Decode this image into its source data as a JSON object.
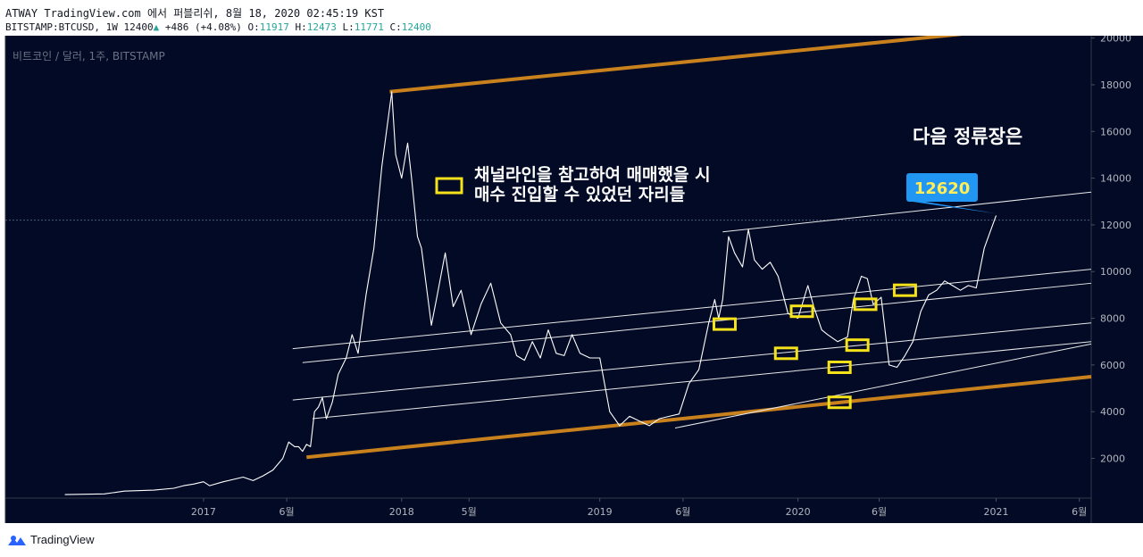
{
  "header": {
    "line1": "ATWAY TradingView.com 에서 퍼블리쉬, 8월 18, 2020 02:45:19 KST",
    "symbol": "BITSTAMP:BTCUSD, 1W 12400",
    "change": "+486 (+4.08%)",
    "o_label": "O:",
    "o": "11917",
    "h_label": "H:",
    "h": "12473",
    "l_label": "L:",
    "l": "11771",
    "c_label": "C:",
    "c": "12400"
  },
  "watermark": "비트코인 / 달러, 1주, BITSTAMP",
  "annotations": {
    "legend_line1": "채널라인을 참고하여 매매했을 시",
    "legend_line2": "매수 진입할 수 있었던 자리들",
    "title_right": "다음 정류장은",
    "price_callout": "12620"
  },
  "footer": {
    "brand": "TradingView"
  },
  "colors": {
    "background": "#020a25",
    "price_line": "#ffffff",
    "channel_orange": "#c8811c",
    "highlight_box": "#f5e21a",
    "callout_bg": "#2196f3",
    "callout_text": "#ffee58",
    "axis_text": "#b2b5be"
  },
  "chart_data": {
    "type": "line",
    "series": [
      {
        "values": [
          [
            2016.3,
            450
          ],
          [
            2016.5,
            480
          ],
          [
            2016.6,
            600
          ],
          [
            2016.75,
            640
          ],
          [
            2016.85,
            720
          ],
          [
            2016.9,
            830
          ],
          [
            2016.95,
            900
          ],
          [
            2017.0,
            1000
          ],
          [
            2017.03,
            830
          ],
          [
            2017.1,
            1000
          ],
          [
            2017.2,
            1200
          ],
          [
            2017.25,
            1050
          ],
          [
            2017.3,
            1250
          ],
          [
            2017.35,
            1500
          ],
          [
            2017.4,
            2000
          ],
          [
            2017.43,
            2700
          ],
          [
            2017.46,
            2500
          ],
          [
            2017.48,
            2500
          ],
          [
            2017.5,
            2300
          ],
          [
            2017.52,
            2600
          ],
          [
            2017.54,
            2500
          ],
          [
            2017.56,
            4000
          ],
          [
            2017.58,
            4200
          ],
          [
            2017.6,
            4600
          ],
          [
            2017.62,
            3700
          ],
          [
            2017.65,
            4400
          ],
          [
            2017.68,
            5600
          ],
          [
            2017.72,
            6300
          ],
          [
            2017.75,
            7300
          ],
          [
            2017.78,
            6500
          ],
          [
            2017.82,
            9000
          ],
          [
            2017.86,
            11000
          ],
          [
            2017.9,
            14500
          ],
          [
            2017.95,
            17700
          ],
          [
            2017.97,
            15000
          ],
          [
            2018.0,
            14000
          ],
          [
            2018.03,
            15500
          ],
          [
            2018.05,
            14000
          ],
          [
            2018.08,
            11500
          ],
          [
            2018.1,
            11000
          ],
          [
            2018.15,
            7700
          ],
          [
            2018.18,
            9000
          ],
          [
            2018.22,
            10800
          ],
          [
            2018.26,
            8500
          ],
          [
            2018.3,
            9200
          ],
          [
            2018.35,
            7300
          ],
          [
            2018.4,
            8600
          ],
          [
            2018.45,
            9500
          ],
          [
            2018.5,
            7800
          ],
          [
            2018.55,
            7300
          ],
          [
            2018.58,
            6400
          ],
          [
            2018.62,
            6200
          ],
          [
            2018.66,
            7000
          ],
          [
            2018.7,
            6300
          ],
          [
            2018.74,
            7500
          ],
          [
            2018.78,
            6500
          ],
          [
            2018.82,
            6400
          ],
          [
            2018.86,
            7300
          ],
          [
            2018.9,
            6500
          ],
          [
            2018.95,
            6300
          ],
          [
            2019.0,
            6300
          ],
          [
            2019.05,
            4000
          ],
          [
            2019.1,
            3400
          ],
          [
            2019.15,
            3800
          ],
          [
            2019.2,
            3600
          ],
          [
            2019.25,
            3400
          ],
          [
            2019.3,
            3700
          ],
          [
            2019.35,
            3800
          ],
          [
            2019.4,
            3900
          ],
          [
            2019.45,
            5200
          ],
          [
            2019.5,
            5800
          ],
          [
            2019.55,
            7800
          ],
          [
            2019.58,
            8800
          ],
          [
            2019.6,
            8000
          ],
          [
            2019.62,
            8800
          ],
          [
            2019.65,
            11500
          ],
          [
            2019.68,
            10800
          ],
          [
            2019.72,
            10200
          ],
          [
            2019.75,
            11800
          ],
          [
            2019.78,
            10500
          ],
          [
            2019.82,
            10100
          ],
          [
            2019.86,
            10400
          ],
          [
            2019.9,
            9800
          ],
          [
            2019.95,
            8200
          ],
          [
            2020.0,
            8000
          ],
          [
            2020.05,
            9400
          ],
          [
            2020.08,
            8500
          ],
          [
            2020.12,
            7500
          ],
          [
            2020.15,
            7300
          ],
          [
            2020.2,
            7000
          ],
          [
            2020.25,
            7200
          ],
          [
            2020.28,
            8800
          ],
          [
            2020.32,
            9800
          ],
          [
            2020.35,
            9700
          ],
          [
            2020.38,
            8600
          ],
          [
            2020.42,
            8900
          ],
          [
            2020.46,
            6000
          ],
          [
            2020.5,
            5900
          ],
          [
            2020.54,
            6400
          ],
          [
            2020.58,
            7000
          ],
          [
            2020.62,
            8300
          ],
          [
            2020.66,
            9000
          ],
          [
            2020.7,
            9200
          ],
          [
            2020.74,
            9600
          ],
          [
            2020.78,
            9400
          ],
          [
            2020.82,
            9200
          ],
          [
            2020.86,
            9400
          ],
          [
            2020.9,
            9300
          ],
          [
            2020.94,
            11000
          ],
          [
            2020.97,
            11700
          ],
          [
            2021.0,
            12400
          ]
        ]
      }
    ],
    "x_ticks": [
      {
        "label": "2017",
        "x": 2017.0
      },
      {
        "label": "6월",
        "x": 2017.42
      },
      {
        "label": "2018",
        "x": 2018.0
      },
      {
        "label": "5월",
        "x": 2018.34
      },
      {
        "label": "2019",
        "x": 2019.0
      },
      {
        "label": "6월",
        "x": 2019.42
      },
      {
        "label": "2020",
        "x": 2020.0
      },
      {
        "label": "6월",
        "x": 2020.41
      },
      {
        "label": "2021",
        "x": 2021.0
      },
      {
        "label": "6월",
        "x": 2021.42
      }
    ],
    "y_ticks": [
      2000,
      4000,
      6000,
      8000,
      10000,
      12000,
      14000,
      16000,
      18000,
      20000
    ],
    "ylim": [
      300,
      20100
    ],
    "xlim": [
      2016.0,
      2021.48
    ],
    "channels": [
      {
        "kind": "orange",
        "from": [
          2017.52,
          2050
        ],
        "to": [
          2021.48,
          5500
        ]
      },
      {
        "kind": "orange",
        "from": [
          2017.94,
          17700
        ],
        "to": [
          2020.86,
          20200
        ]
      },
      {
        "kind": "white",
        "from": [
          2017.45,
          6700
        ],
        "to": [
          2021.48,
          10100
        ]
      },
      {
        "kind": "white",
        "from": [
          2017.5,
          6100
        ],
        "to": [
          2021.48,
          9500
        ]
      },
      {
        "kind": "white",
        "from": [
          2017.45,
          4500
        ],
        "to": [
          2021.48,
          7800
        ]
      },
      {
        "kind": "white",
        "from": [
          2017.55,
          3700
        ],
        "to": [
          2021.48,
          7000
        ]
      },
      {
        "kind": "white",
        "from": [
          2019.38,
          3300
        ],
        "to": [
          2021.48,
          6900
        ]
      },
      {
        "kind": "white",
        "from": [
          2019.62,
          11700
        ],
        "to": [
          2021.48,
          13400
        ]
      }
    ],
    "highlights": [
      [
        2019.63,
        7750
      ],
      [
        2019.94,
        6500
      ],
      [
        2020.02,
        8300
      ],
      [
        2020.21,
        4400
      ],
      [
        2020.21,
        5900
      ],
      [
        2020.3,
        6850
      ],
      [
        2020.34,
        8600
      ],
      [
        2020.54,
        9200
      ]
    ],
    "reference_line": 12200,
    "callout": {
      "x": 2020.98,
      "y": 13800
    }
  }
}
